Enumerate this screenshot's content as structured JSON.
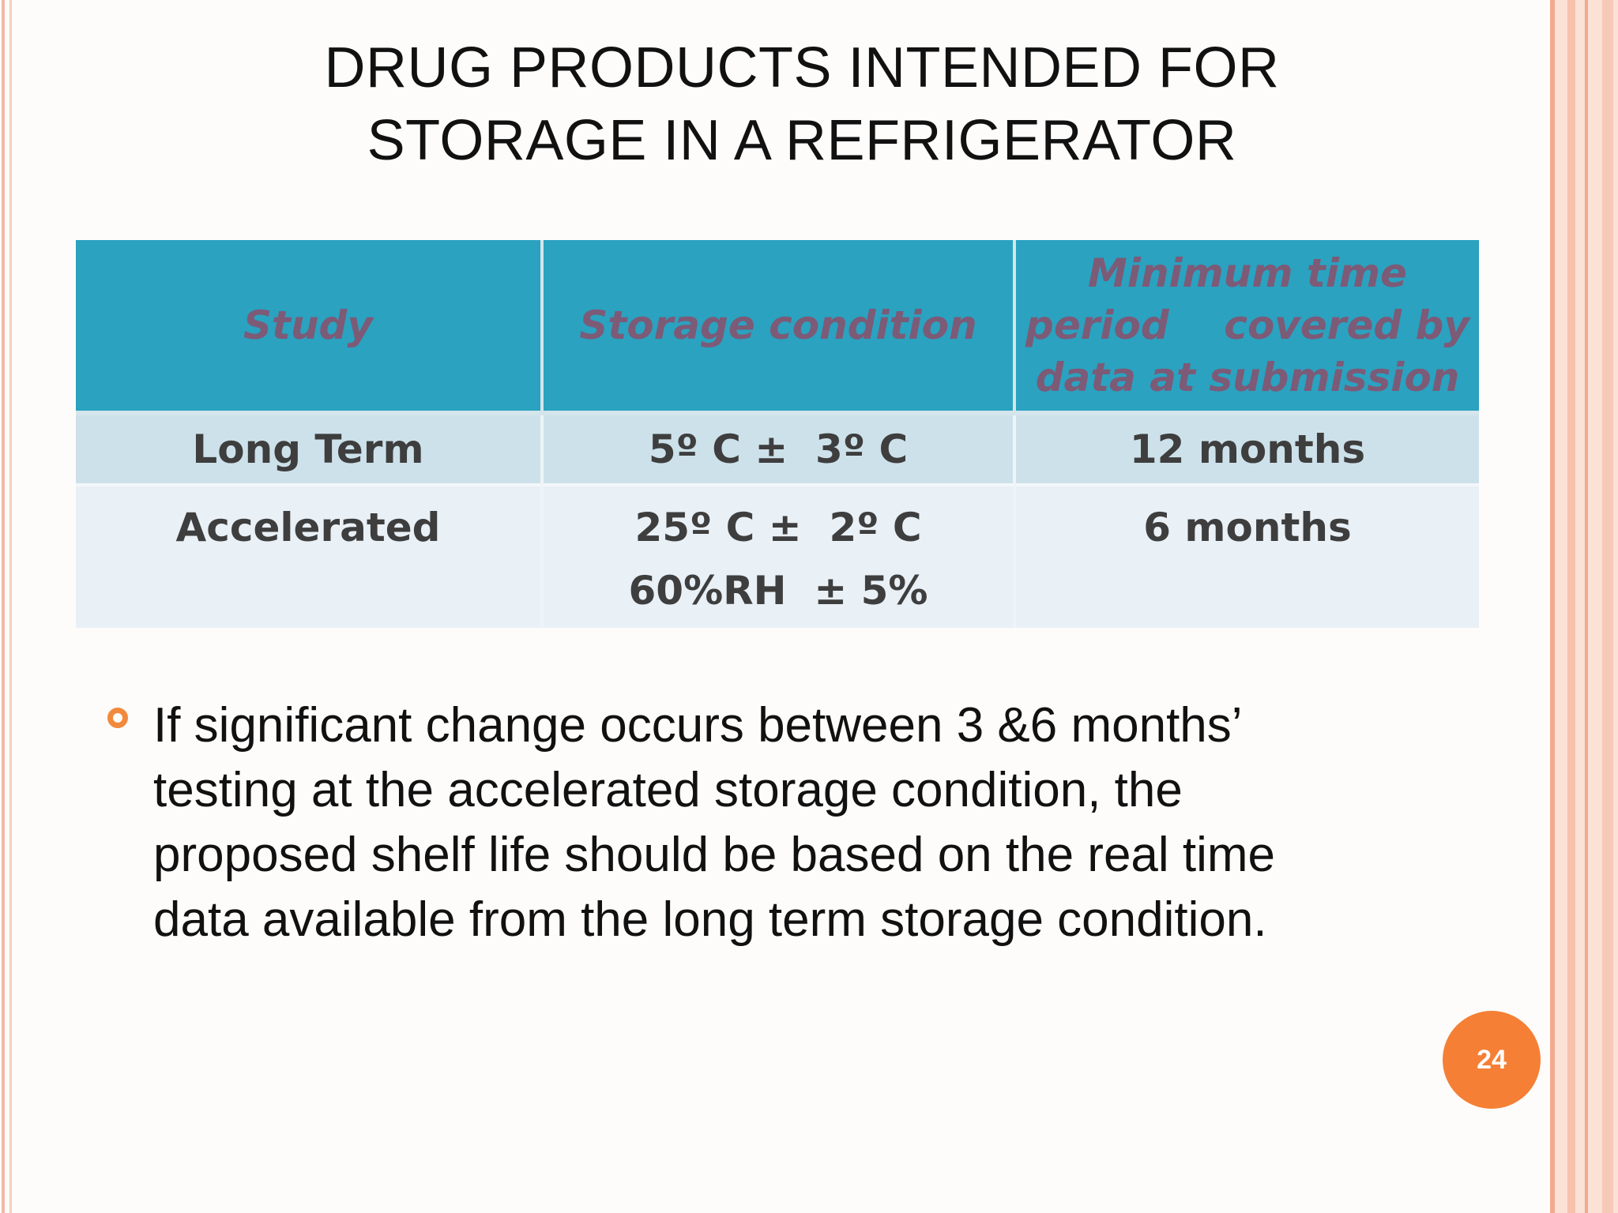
{
  "title": {
    "line1": "DRUG PRODUCTS INTENDED FOR",
    "line2": "STORAGE IN A REFRIGERATOR"
  },
  "table": {
    "headers": {
      "study": "Study",
      "storage_condition": "Storage condition",
      "minimum_time": [
        "Minimum time",
        "period    covered by",
        "data at submission"
      ]
    },
    "rows": [
      {
        "study": "Long Term",
        "condition": [
          "5º C ±  3º C"
        ],
        "minimum_time": "12 months"
      },
      {
        "study": "Accelerated",
        "condition": [
          "25º C ±  2º C",
          "60%RH  ± 5%"
        ],
        "minimum_time": "6 months"
      }
    ]
  },
  "bullet_text": [
    "If significant change occurs between 3 &6 months’",
    "testing at the accelerated storage condition, the",
    "proposed shelf life should be based on the real time",
    "data available from the long term storage condition."
  ],
  "page_number": "24",
  "colors": {
    "header_bg": "#2aa2c0",
    "header_text": "#7d5a76",
    "row_long_bg": "#cde1ea",
    "row_accelerated_bg": "#e9f0f6",
    "accent_orange": "#f57f35",
    "border_pink": "#f2aa8f"
  }
}
